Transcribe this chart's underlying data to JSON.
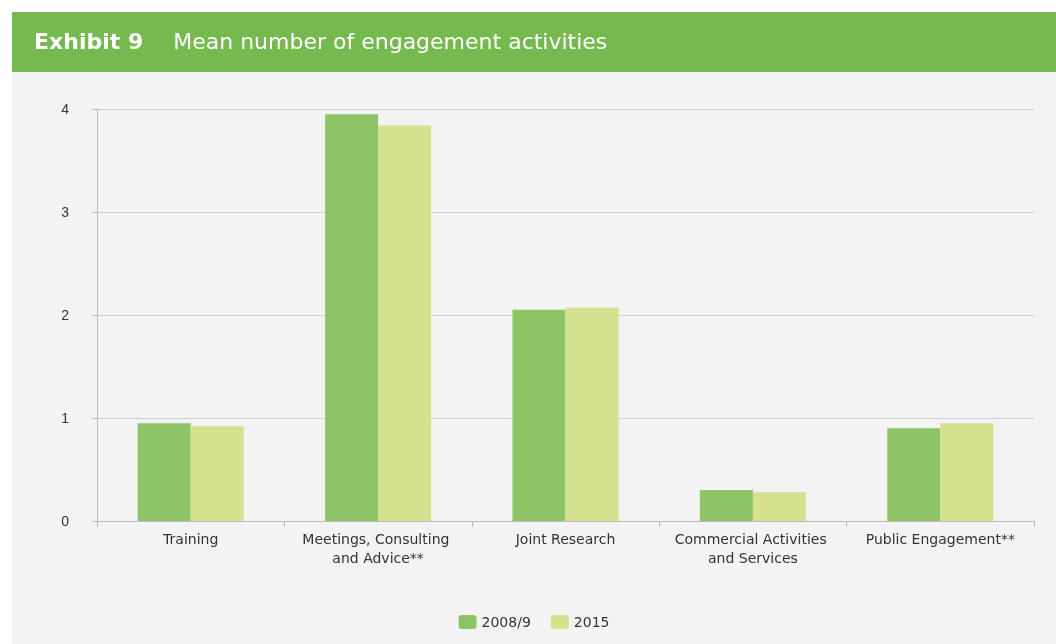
{
  "chart_data": {
    "type": "bar",
    "title": "Exhibit 9",
    "subtitle": "Mean number of engagement activities",
    "categories": [
      "Training",
      "Meetings, Consulting and Advice**",
      "Joint Research",
      "Commercial Activities and Services",
      "Public Engagement**"
    ],
    "series": [
      {
        "name": "2008/9",
        "color": "#8cc466",
        "values": [
          0.95,
          3.95,
          2.05,
          0.3,
          0.9
        ]
      },
      {
        "name": "2015",
        "color": "#d4e18f",
        "values": [
          0.92,
          3.84,
          2.07,
          0.28,
          0.95
        ]
      }
    ],
    "ylim": [
      0,
      4
    ],
    "yticks": [
      0,
      1,
      2,
      3,
      4
    ],
    "grid": "y",
    "legend": "bottom"
  }
}
